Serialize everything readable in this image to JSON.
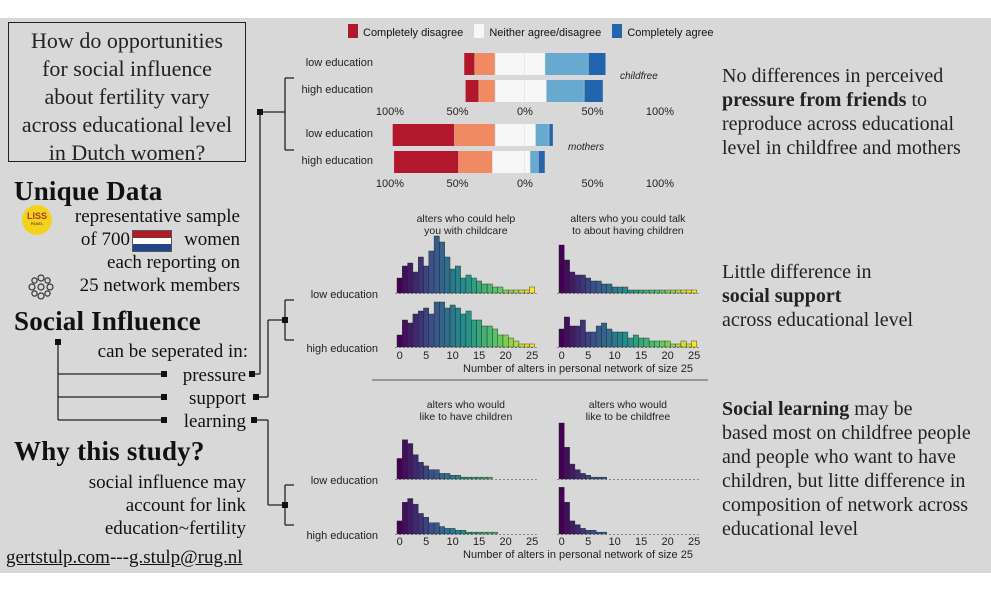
{
  "question": [
    "How do opportunities",
    "for social influence",
    "about fertility vary",
    "across educational level",
    "in Dutch women?"
  ],
  "unique_data": {
    "heading": "Unique Data",
    "logo_text": "LISS",
    "logo_sub": "PANEL",
    "line1": "representative sample",
    "line2a": "of 700",
    "line2b": "women",
    "line3": "each reporting on",
    "line4": "25 network members"
  },
  "social_influence": {
    "heading": "Social Influence",
    "line": "can be seperated in:",
    "items": [
      "pressure",
      "support",
      "learning"
    ]
  },
  "why": {
    "heading": "Why this study?",
    "lines": [
      "social influence may",
      "account for link",
      "education~fertility"
    ]
  },
  "footer": {
    "site": "gertstulp.com",
    "sep": "---",
    "email": "g.stulp@rug.nl"
  },
  "findings": {
    "pressure": {
      "pre": "No differences in perceived",
      "bold": "pressure from friends",
      "post": [
        "to",
        "reproduce across educational",
        "level in childfree and mothers"
      ]
    },
    "support": {
      "line1": "Little difference in",
      "bold": "social support",
      "line3": "across educational level"
    },
    "learning": {
      "bold": "Social learning",
      "l1post": "may be",
      "lines": [
        "based most on childfree people",
        "and people who want to have",
        "children, but litte difference in",
        "composition of network across",
        "educational level"
      ]
    }
  },
  "colors": {
    "cd": "#b2182b",
    "d": "#ef8a62",
    "n": "#f7f7f7",
    "a": "#67a9cf",
    "ca": "#2166ac"
  },
  "chart_data": [
    {
      "type": "bar",
      "subtype": "diverging-stacked-likert",
      "legend": [
        "Completely disagree",
        "Neither agree/disagree",
        "Completely agree"
      ],
      "tick_labels": [
        "100%",
        "50%",
        "0%",
        "50%",
        "100%"
      ],
      "xlim": [
        -100,
        100
      ],
      "panels": [
        {
          "label": "childfree",
          "groups": [
            {
              "name": "low education",
              "values": [
                8,
                15,
                22,
                15,
                32,
                13
              ]
            },
            {
              "name": "high education",
              "values": [
                10,
                12,
                22,
                16,
                28,
                14
              ]
            }
          ]
        },
        {
          "label": "mothers",
          "groups": [
            {
              "name": "low education",
              "values": [
                46,
                30,
                22,
                8,
                10,
                3
              ]
            },
            {
              "name": "high education",
              "values": [
                48,
                25,
                24,
                4,
                6,
                5
              ]
            }
          ]
        }
      ]
    },
    {
      "type": "bar",
      "subtype": "histogram-grid",
      "rows": [
        "low education",
        "high education"
      ],
      "x_ticks": [
        0,
        5,
        10,
        15,
        20,
        25
      ],
      "xlabel": "Number of alters in personal network of size 25",
      "columns": [
        {
          "title": [
            "alters who could help",
            "you with childcare"
          ],
          "series": [
            [
              5,
              9,
              10,
              7,
              12,
              9,
              14,
              19,
              17,
              12,
              8,
              9,
              5,
              6,
              5,
              4,
              3,
              3,
              2,
              2,
              1,
              1,
              1,
              1,
              1,
              2
            ],
            [
              4,
              9,
              8,
              11,
              12,
              13,
              11,
              15,
              15,
              13,
              14,
              13,
              11,
              12,
              9,
              9,
              7,
              7,
              6,
              4,
              4,
              3,
              2,
              1,
              1,
              1
            ]
          ]
        },
        {
          "title": [
            "alters who you could talk",
            "to about having children"
          ],
          "series": [
            [
              16,
              11,
              7,
              6,
              6,
              5,
              4,
              4,
              3,
              3,
              2,
              2,
              2,
              1,
              1,
              1,
              1,
              1,
              1,
              1,
              1,
              1,
              1,
              1,
              1,
              1
            ],
            [
              6,
              10,
              7,
              7,
              9,
              5,
              5,
              7,
              8,
              6,
              5,
              5,
              5,
              3,
              4,
              3,
              3,
              2,
              2,
              2,
              2,
              1,
              1,
              2,
              1,
              2
            ]
          ]
        }
      ]
    },
    {
      "type": "bar",
      "subtype": "histogram-grid",
      "rows": [
        "low education",
        "high education"
      ],
      "x_ticks": [
        0,
        5,
        10,
        15,
        20,
        25
      ],
      "xlabel": "Number of alters in personal network of size 25",
      "columns": [
        {
          "title": [
            "alters who would",
            "like to have children"
          ],
          "series": [
            [
              11,
              21,
              19,
              13,
              9,
              7,
              5,
              5,
              3,
              3,
              2,
              2,
              1,
              1,
              1,
              1,
              1,
              1,
              0,
              0,
              0,
              0,
              0,
              0,
              0,
              0
            ],
            [
              7,
              17,
              19,
              16,
              11,
              9,
              6,
              6,
              4,
              3,
              3,
              2,
              2,
              1,
              1,
              1,
              1,
              1,
              1,
              0,
              0,
              0,
              0,
              0,
              0,
              0
            ]
          ]
        },
        {
          "title": [
            "alters who would",
            "like to be childfree"
          ],
          "series": [
            [
              30,
              17,
              8,
              5,
              3,
              2,
              1,
              1,
              1,
              0,
              0,
              0,
              0,
              0,
              0,
              0,
              0,
              0,
              0,
              0,
              0,
              0,
              0,
              0,
              0,
              0
            ],
            [
              25,
              17,
              7,
              5,
              3,
              2,
              2,
              1,
              1,
              0,
              0,
              0,
              0,
              0,
              0,
              0,
              0,
              0,
              0,
              0,
              0,
              0,
              0,
              0,
              0,
              0
            ]
          ]
        }
      ]
    }
  ]
}
